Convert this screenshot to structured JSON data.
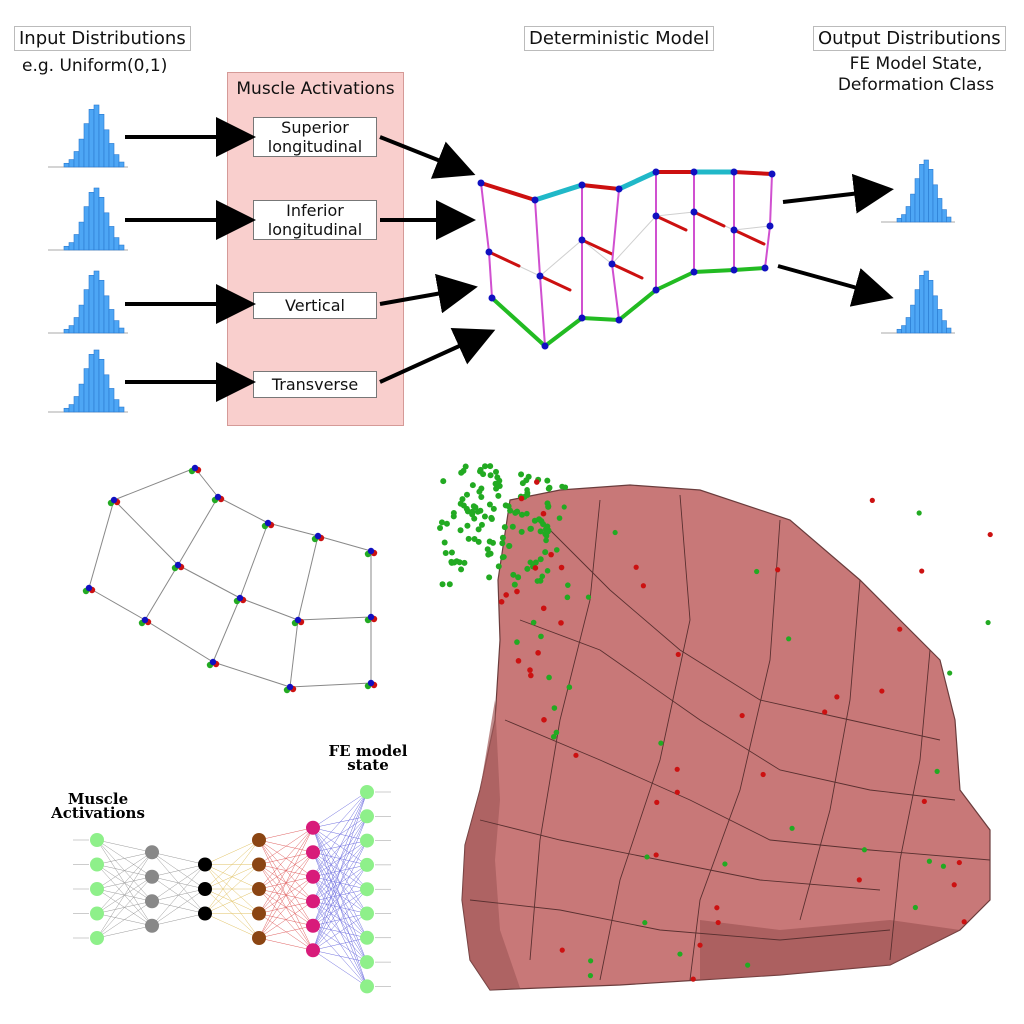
{
  "header": {
    "input_title": "Input Distributions",
    "input_sub": "e.g. Uniform(0,1)",
    "model_title": "Deterministic Model",
    "output_title": "Output Distributions",
    "output_sub_1": "FE Model State,",
    "output_sub_2": "Deformation Class"
  },
  "muscles": {
    "title": "Muscle Activations",
    "items": [
      {
        "line1": "Superior",
        "line2": "longitudinal"
      },
      {
        "line1": "Inferior",
        "line2": "longitudinal"
      },
      {
        "line1": "Vertical",
        "line2": ""
      },
      {
        "line1": "Transverse",
        "line2": ""
      }
    ]
  },
  "network": {
    "input_label_1": "Muscle",
    "input_label_2": "Activations",
    "output_label_1": "FE model",
    "output_label_2": "state",
    "layer_sizes": [
      5,
      4,
      3,
      5,
      6,
      9
    ],
    "layer_colors": [
      "#8ef08a",
      "#888888",
      "#000000",
      "#8b4513",
      "#d81b7a",
      "#8ef08a"
    ],
    "edge_colors": [
      "#999999",
      "#999999",
      "#e0c060",
      "#e06060",
      "#7070e0"
    ]
  },
  "colors": {
    "histogram": "#4da6f5",
    "panel": "#f9cfcd",
    "node": "#1010c0",
    "red_fibre": "#cc1010",
    "green_fibre": "#22bb22",
    "cyan_fibre": "#20b8c8",
    "magenta_fibre": "#d050d0",
    "mesh": "#c87878",
    "point_red": "#cc1111",
    "point_green": "#22aa22"
  }
}
